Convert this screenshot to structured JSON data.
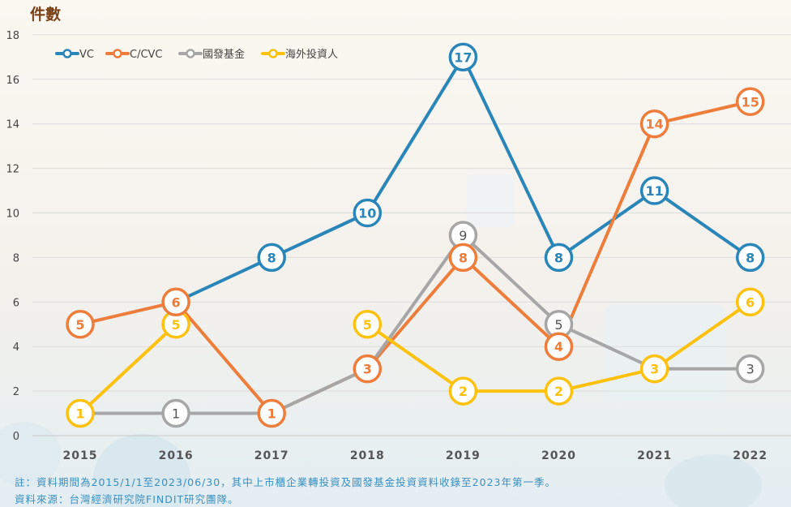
{
  "chart_data": {
    "type": "line",
    "ylabel": "件數",
    "ylim": [
      0,
      18
    ],
    "yticks": [
      0,
      2,
      4,
      6,
      8,
      10,
      12,
      14,
      16,
      18
    ],
    "categories": [
      "2015",
      "2016",
      "2017",
      "2018",
      "2019",
      "2020",
      "2021",
      "2022"
    ],
    "grid": true,
    "legend_position": "top-left",
    "series": [
      {
        "name": "VC",
        "color": "#2a86b8",
        "values": [
          null,
          6,
          8,
          10,
          17,
          8,
          11,
          8
        ],
        "labels": [
          null,
          null,
          "8",
          "10",
          "17",
          "8",
          "11",
          "8"
        ]
      },
      {
        "name": "C/CVC",
        "color": "#ee7d3b",
        "values": [
          5,
          6,
          1,
          3,
          8,
          4,
          14,
          15
        ],
        "labels": [
          "5",
          "6",
          "1",
          "3",
          "8",
          "4",
          "14",
          "15"
        ]
      },
      {
        "name": "國發基金",
        "color": "#a6a6a6",
        "values": [
          1,
          1,
          1,
          3,
          9,
          5,
          3,
          3
        ],
        "labels": [
          null,
          "1",
          null,
          null,
          "9",
          "5",
          null,
          "3"
        ]
      },
      {
        "name": "海外投資人",
        "color": "#fdc10e",
        "values": [
          1,
          5,
          null,
          5,
          2,
          2,
          3,
          6
        ],
        "labels": [
          "1",
          "5",
          null,
          "5",
          "2",
          "2",
          "3",
          "6"
        ]
      }
    ]
  },
  "notes": {
    "line1": "註：資料期間為2015/1/1至2023/06/30，其中上市櫃企業轉投資及國發基金投資資料收錄至2023年第一季。",
    "line2": "資料來源：台灣經濟研究院FINDIT研究團隊。"
  }
}
